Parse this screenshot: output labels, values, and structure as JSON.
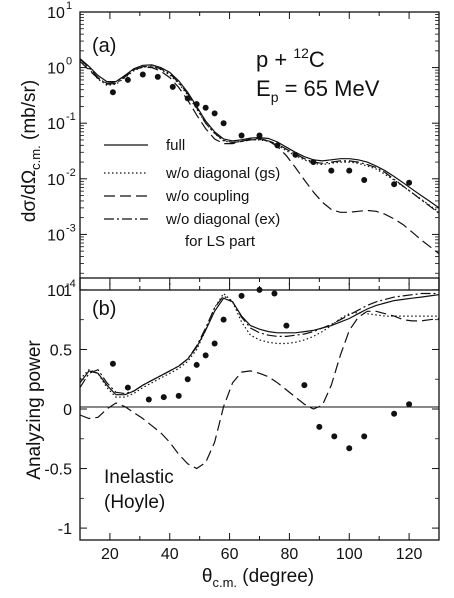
{
  "figure": {
    "panel_a": {
      "label": "(a)",
      "reaction_p": "p + ",
      "reaction_mass": "12",
      "reaction_c": "C",
      "energy_e": "E",
      "energy_sub": "p",
      "energy_val": " = 65 MeV",
      "ylabel_main": "dσ/dΩ",
      "ylabel_sub": "c.m.",
      "ylabel_unit": " (mb/sr)",
      "y_tick_labels": [
        "10",
        "10",
        "10",
        "10",
        "10",
        "10"
      ],
      "y_tick_exps": [
        "1",
        "0",
        "-1",
        "-2",
        "-3",
        "-4"
      ]
    },
    "panel_b": {
      "label": "(b)",
      "ylabel": "Analyzing power",
      "note_line1": "Inelastic",
      "note_line2": "(Hoyle)",
      "y_tick_labels": [
        "1",
        "0.5",
        "0",
        "-0.5",
        "-1"
      ]
    },
    "legend": [
      {
        "label": "full",
        "style": "solid"
      },
      {
        "label": "w/o diagonal (gs)",
        "style": "dotted"
      },
      {
        "label": "w/o coupling",
        "style": "dashed"
      },
      {
        "label": "w/o diagonal (ex)",
        "style": "dashdot"
      },
      {
        "label": "for LS part",
        "style": "none"
      }
    ],
    "xlabel_main": "θ",
    "xlabel_sub": "c.m.",
    "xlabel_unit": " (degree)",
    "x_tick_labels": [
      "20",
      "40",
      "60",
      "80",
      "100",
      "120"
    ]
  },
  "chart_data": [
    {
      "type": "line",
      "panel": "a",
      "title": "",
      "xlabel": "θc.m. (degree)",
      "ylabel": "dσ/dΩc.m. (mb/sr)",
      "xlim": [
        10,
        130
      ],
      "ylim": [
        0.0001,
        10
      ],
      "yscale": "log",
      "x_ticks": [
        20,
        40,
        60,
        80,
        100,
        120
      ],
      "legend_position": "lower-left",
      "series": [
        {
          "name": "full",
          "style": "solid",
          "x": [
            10,
            13,
            16,
            19,
            22,
            25,
            28,
            31,
            34,
            37,
            40,
            43,
            46,
            49,
            52,
            55,
            58,
            61,
            64,
            67,
            70,
            73,
            76,
            79,
            82,
            85,
            88,
            91,
            94,
            97,
            100,
            103,
            106,
            109,
            112,
            115,
            118,
            121,
            124,
            127,
            130
          ],
          "y": [
            1.45,
            1.05,
            0.72,
            0.56,
            0.56,
            0.72,
            0.95,
            1.1,
            1.12,
            1.0,
            0.82,
            0.58,
            0.36,
            0.2,
            0.11,
            0.07,
            0.052,
            0.048,
            0.05,
            0.054,
            0.055,
            0.053,
            0.046,
            0.037,
            0.03,
            0.025,
            0.022,
            0.021,
            0.022,
            0.023,
            0.023,
            0.022,
            0.02,
            0.017,
            0.014,
            0.011,
            0.0085,
            0.0065,
            0.005,
            0.0039,
            0.003
          ]
        },
        {
          "name": "w/o diagonal (gs)",
          "style": "dotted",
          "x": [
            10,
            13,
            16,
            19,
            22,
            25,
            28,
            31,
            34,
            37,
            40,
            43,
            46,
            49,
            52,
            55,
            58,
            61,
            64,
            67,
            70,
            73,
            76,
            79,
            82,
            85,
            88,
            91,
            94,
            97,
            100,
            103,
            106,
            109,
            112,
            115,
            118,
            121,
            124,
            127,
            130
          ],
          "y": [
            1.4,
            0.95,
            0.62,
            0.48,
            0.5,
            0.66,
            0.88,
            1.02,
            1.04,
            0.92,
            0.74,
            0.52,
            0.32,
            0.18,
            0.1,
            0.065,
            0.048,
            0.045,
            0.047,
            0.05,
            0.05,
            0.047,
            0.04,
            0.032,
            0.026,
            0.022,
            0.019,
            0.018,
            0.019,
            0.02,
            0.02,
            0.019,
            0.017,
            0.015,
            0.012,
            0.0095,
            0.0073,
            0.0056,
            0.0043,
            0.0033,
            0.0025
          ]
        },
        {
          "name": "w/o coupling",
          "style": "dashed",
          "x": [
            10,
            13,
            16,
            19,
            22,
            25,
            28,
            31,
            34,
            37,
            40,
            43,
            46,
            49,
            52,
            55,
            58,
            61,
            64,
            67,
            70,
            73,
            76,
            79,
            82,
            85,
            88,
            91,
            94,
            97,
            100,
            103,
            106,
            109,
            112,
            115,
            118,
            121,
            124,
            127,
            130
          ],
          "y": [
            1.3,
            0.9,
            0.64,
            0.52,
            0.55,
            0.72,
            0.92,
            1.02,
            1.0,
            0.86,
            0.66,
            0.44,
            0.26,
            0.14,
            0.08,
            0.052,
            0.043,
            0.043,
            0.047,
            0.052,
            0.053,
            0.048,
            0.038,
            0.026,
            0.016,
            0.0095,
            0.0058,
            0.0038,
            0.0028,
            0.0025,
            0.0025,
            0.0026,
            0.0027,
            0.0026,
            0.0023,
            0.0019,
            0.0015,
            0.0011,
            0.0008,
            0.0006,
            0.00045
          ]
        },
        {
          "name": "w/o diagonal (ex) for LS part",
          "style": "dashdot",
          "x": [
            10,
            13,
            16,
            19,
            22,
            25,
            28,
            31,
            34,
            37,
            40,
            43,
            46,
            49,
            52,
            55,
            58,
            61,
            64,
            67,
            70,
            73,
            76,
            79,
            82,
            85,
            88,
            91,
            94,
            97,
            100,
            103,
            106,
            109,
            112,
            115,
            118,
            121,
            124,
            127,
            130
          ],
          "y": [
            1.42,
            1.0,
            0.66,
            0.5,
            0.52,
            0.68,
            0.9,
            1.04,
            1.06,
            0.95,
            0.77,
            0.54,
            0.34,
            0.19,
            0.1,
            0.066,
            0.049,
            0.045,
            0.047,
            0.05,
            0.051,
            0.048,
            0.042,
            0.034,
            0.028,
            0.023,
            0.02,
            0.019,
            0.02,
            0.021,
            0.021,
            0.02,
            0.018,
            0.016,
            0.013,
            0.0098,
            0.0074,
            0.0056,
            0.0042,
            0.0032,
            0.0024
          ]
        },
        {
          "name": "",
          "style": "points",
          "x": [
            21,
            26,
            31,
            36,
            41,
            46,
            49,
            52,
            55,
            58,
            64,
            70,
            76,
            82,
            88,
            94,
            100,
            105,
            115,
            120
          ],
          "y": [
            0.36,
            0.6,
            0.75,
            0.68,
            0.45,
            0.28,
            0.22,
            0.19,
            0.15,
            0.1,
            0.06,
            0.06,
            0.04,
            0.027,
            0.02,
            0.014,
            0.014,
            0.0095,
            0.008,
            0.0085
          ]
        }
      ]
    },
    {
      "type": "line",
      "panel": "b",
      "title": "",
      "xlabel": "θc.m. (degree)",
      "ylabel": "Analyzing power",
      "xlim": [
        10,
        130
      ],
      "ylim": [
        -1.1,
        1.1
      ],
      "yscale": "linear",
      "x_ticks": [
        20,
        40,
        60,
        80,
        100,
        120
      ],
      "y_ticks": [
        -1,
        -0.5,
        0,
        0.5,
        1
      ],
      "zero_line": true,
      "series": [
        {
          "name": "full",
          "style": "solid",
          "x": [
            10,
            13,
            16,
            19,
            22,
            25,
            28,
            31,
            34,
            37,
            40,
            43,
            46,
            49,
            52,
            55,
            58,
            61,
            64,
            67,
            70,
            73,
            76,
            79,
            82,
            85,
            88,
            91,
            94,
            97,
            100,
            103,
            106,
            109,
            112,
            115,
            118,
            121,
            124,
            127,
            130
          ],
          "y": [
            0.22,
            0.32,
            0.3,
            0.2,
            0.12,
            0.12,
            0.15,
            0.2,
            0.24,
            0.28,
            0.32,
            0.36,
            0.42,
            0.52,
            0.66,
            0.82,
            0.93,
            0.9,
            0.78,
            0.7,
            0.67,
            0.65,
            0.64,
            0.64,
            0.64,
            0.65,
            0.66,
            0.68,
            0.7,
            0.73,
            0.76,
            0.8,
            0.84,
            0.87,
            0.89,
            0.91,
            0.92,
            0.93,
            0.94,
            0.95,
            0.96
          ]
        },
        {
          "name": "w/o diagonal (gs)",
          "style": "dotted",
          "x": [
            10,
            13,
            16,
            19,
            22,
            25,
            28,
            31,
            34,
            37,
            40,
            43,
            46,
            49,
            52,
            55,
            58,
            61,
            64,
            67,
            70,
            73,
            76,
            79,
            82,
            85,
            88,
            91,
            94,
            97,
            100,
            103,
            106,
            109,
            112,
            115,
            118,
            121,
            124,
            127,
            130
          ],
          "y": [
            0.25,
            0.33,
            0.3,
            0.18,
            0.1,
            0.1,
            0.13,
            0.18,
            0.22,
            0.26,
            0.3,
            0.34,
            0.4,
            0.5,
            0.66,
            0.85,
            0.97,
            0.9,
            0.73,
            0.62,
            0.58,
            0.56,
            0.55,
            0.55,
            0.56,
            0.58,
            0.61,
            0.65,
            0.7,
            0.76,
            0.8,
            0.81,
            0.8,
            0.79,
            0.78,
            0.78,
            0.78,
            0.78,
            0.78,
            0.78,
            0.78
          ]
        },
        {
          "name": "w/o coupling",
          "style": "dashed",
          "x": [
            10,
            13,
            16,
            19,
            22,
            25,
            28,
            31,
            34,
            37,
            40,
            43,
            46,
            49,
            52,
            55,
            58,
            61,
            64,
            67,
            70,
            73,
            76,
            79,
            82,
            85,
            88,
            91,
            94,
            97,
            100,
            103,
            106,
            109,
            112,
            115,
            118,
            121,
            124,
            127,
            130
          ],
          "y": [
            -0.05,
            -0.08,
            -0.07,
            0.0,
            0.05,
            0.02,
            -0.03,
            -0.08,
            -0.14,
            -0.2,
            -0.28,
            -0.38,
            -0.46,
            -0.5,
            -0.45,
            -0.28,
            0.02,
            0.22,
            0.31,
            0.32,
            0.3,
            0.27,
            0.22,
            0.16,
            0.1,
            0.04,
            0.0,
            0.03,
            0.2,
            0.45,
            0.66,
            0.77,
            0.82,
            0.82,
            0.8,
            0.78,
            0.75,
            0.74,
            0.74,
            0.75,
            0.76
          ]
        },
        {
          "name": "w/o diagonal (ex) for LS part",
          "style": "dashdot",
          "x": [
            10,
            13,
            16,
            19,
            22,
            25,
            28,
            31,
            34,
            37,
            40,
            43,
            46,
            49,
            52,
            55,
            58,
            61,
            64,
            67,
            70,
            73,
            76,
            79,
            82,
            85,
            88,
            91,
            94,
            97,
            100,
            103,
            106,
            109,
            112,
            115,
            118,
            121,
            124,
            127,
            130
          ],
          "y": [
            0.18,
            0.3,
            0.33,
            0.22,
            0.14,
            0.13,
            0.15,
            0.2,
            0.24,
            0.28,
            0.32,
            0.36,
            0.42,
            0.53,
            0.68,
            0.85,
            0.95,
            0.9,
            0.77,
            0.68,
            0.64,
            0.62,
            0.61,
            0.61,
            0.62,
            0.63,
            0.65,
            0.68,
            0.71,
            0.75,
            0.79,
            0.83,
            0.87,
            0.9,
            0.92,
            0.94,
            0.95,
            0.96,
            0.97,
            0.97,
            0.97
          ]
        },
        {
          "name": "",
          "style": "points",
          "x": [
            21,
            26,
            33,
            38,
            43,
            46,
            49,
            52,
            55,
            58,
            64,
            70,
            75,
            79,
            85,
            90,
            95,
            100,
            105,
            115,
            120
          ],
          "y": [
            0.38,
            0.18,
            0.08,
            0.1,
            0.11,
            0.25,
            0.37,
            0.45,
            0.55,
            0.75,
            0.95,
            1.0,
            0.97,
            0.7,
            0.2,
            -0.15,
            -0.23,
            -0.33,
            -0.23,
            -0.04,
            0.04
          ]
        }
      ]
    }
  ]
}
